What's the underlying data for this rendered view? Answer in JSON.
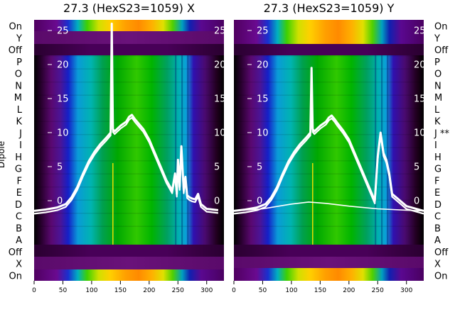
{
  "figure": {
    "ylabel_left": "Dipole"
  },
  "chart_data": [
    {
      "type": "heatmap",
      "title": "27.3 (HexS23=1059) X",
      "xlim": [
        0,
        330
      ],
      "x_ticks": [
        0,
        50,
        100,
        150,
        200,
        250,
        300
      ],
      "inner_y_ticks": [
        0,
        5,
        10,
        15,
        20,
        25
      ],
      "row_labels": [
        "On",
        "Y",
        "Off",
        "P",
        "O",
        "N",
        "M",
        "L",
        "K",
        "J",
        "I",
        "H",
        "G",
        "F",
        "E",
        "D",
        "C",
        "B",
        "A",
        "Off",
        "X",
        "On"
      ],
      "overlay_lines": [
        {
          "x": [
            0,
            20,
            40,
            55,
            65,
            75,
            85,
            95,
            105,
            115,
            125,
            133,
            135,
            137,
            140,
            150,
            160,
            165,
            170,
            175,
            180,
            190,
            200,
            210,
            220,
            230,
            240,
            245,
            248,
            250,
            253,
            256,
            260,
            263,
            266,
            270,
            275,
            280,
            285,
            290,
            300,
            320
          ],
          "y": [
            -1.5,
            -1.3,
            -1.0,
            -0.5,
            0.5,
            2.0,
            4.0,
            5.8,
            7.2,
            8.3,
            9.2,
            10.0,
            26.0,
            10.5,
            10.2,
            11.0,
            11.6,
            12.3,
            12.6,
            12.0,
            11.5,
            10.5,
            9.0,
            7.0,
            5.0,
            3.0,
            1.5,
            4.0,
            1.0,
            6.0,
            2.0,
            8.0,
            1.5,
            3.5,
            0.8,
            0.5,
            0.3,
            0.2,
            1.0,
            -0.5,
            -1.2,
            -1.4
          ]
        }
      ]
    },
    {
      "type": "heatmap",
      "title": "27.3 (HexS23=1059) Y",
      "xlim": [
        0,
        330
      ],
      "x_ticks": [
        0,
        50,
        100,
        150,
        200,
        250,
        300
      ],
      "inner_y_ticks": [
        0,
        5,
        10,
        15,
        20,
        25
      ],
      "row_labels": [
        "On",
        "Y",
        "Off",
        "P",
        "O",
        "N",
        "M",
        "L",
        "K",
        "J **",
        "I",
        "H",
        "G",
        "F",
        "E",
        "D",
        "C",
        "B",
        "A",
        "Off",
        "X",
        "On"
      ],
      "overlay_lines": [
        {
          "x": [
            0,
            20,
            40,
            55,
            65,
            75,
            85,
            95,
            105,
            115,
            125,
            133,
            135,
            137,
            140,
            150,
            160,
            165,
            170,
            175,
            180,
            190,
            200,
            210,
            220,
            230,
            240,
            245,
            250,
            255,
            260,
            265,
            270,
            275,
            300,
            330
          ],
          "y": [
            -1.5,
            -1.3,
            -1.0,
            -0.5,
            0.5,
            2.0,
            4.0,
            5.8,
            7.2,
            8.3,
            9.2,
            10.0,
            19.5,
            10.5,
            10.2,
            11.0,
            11.6,
            12.2,
            12.5,
            12.0,
            11.4,
            10.3,
            9.0,
            7.0,
            5.0,
            3.0,
            1.0,
            0.0,
            6.5,
            10.0,
            7.0,
            6.0,
            4.0,
            1.0,
            -0.8,
            -1.5
          ]
        },
        {
          "x": [
            0,
            50,
            100,
            130,
            160,
            200,
            250,
            300,
            330
          ],
          "y": [
            -1.5,
            -1.2,
            -0.5,
            -0.2,
            -0.4,
            -0.8,
            -1.2,
            -1.4,
            -1.5
          ]
        }
      ]
    }
  ]
}
